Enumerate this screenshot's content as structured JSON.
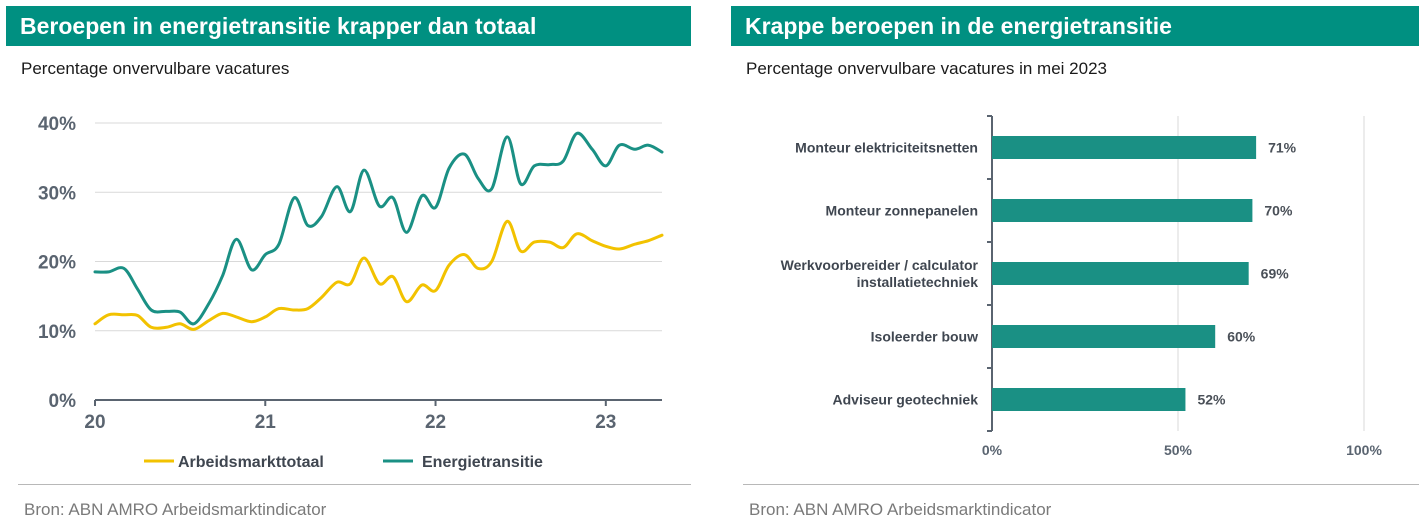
{
  "colors": {
    "header": "#009081",
    "series_total": "#f2c200",
    "series_energy": "#1a9084",
    "grid": "#d9d9d9",
    "axis": "#5a6470"
  },
  "left": {
    "title": "Beroepen in energietransitie krapper dan totaal",
    "subtitle": "Percentage onvervulbare vacatures",
    "source": "Bron: ABN AMRO Arbeidsmarktindicator"
  },
  "right": {
    "title": "Krappe beroepen in de energietransitie",
    "subtitle": "Percentage onvervulbare vacatures in mei 2023",
    "source": "Bron: ABN AMRO Arbeidsmarktindicator"
  },
  "chart_data": [
    {
      "type": "line",
      "title": "Beroepen in energietransitie krapper dan totaal",
      "subtitle": "Percentage onvervulbare vacatures",
      "xlim": [
        20,
        23.33
      ],
      "ylim": [
        0,
        40
      ],
      "x_ticks": [
        20,
        21,
        22,
        23
      ],
      "x_tick_labels": [
        "20",
        "21",
        "22",
        "23"
      ],
      "y_ticks": [
        0,
        10,
        20,
        30,
        40
      ],
      "y_tick_labels": [
        "0%",
        "10%",
        "20%",
        "30%",
        "40%"
      ],
      "grid": true,
      "legend": "bottom",
      "x": [
        20.0,
        20.08,
        20.17,
        20.25,
        20.33,
        20.42,
        20.5,
        20.58,
        20.67,
        20.75,
        20.83,
        20.92,
        21.0,
        21.08,
        21.17,
        21.25,
        21.33,
        21.42,
        21.5,
        21.58,
        21.67,
        21.75,
        21.83,
        21.92,
        22.0,
        22.08,
        22.17,
        22.25,
        22.33,
        22.42,
        22.5,
        22.58,
        22.67,
        22.75,
        22.83,
        22.92,
        23.0,
        23.08,
        23.17,
        23.25,
        23.33
      ],
      "series": [
        {
          "name": "Arbeidsmarkttotaal",
          "color": "#f2c200",
          "values": [
            11,
            12.3,
            12.3,
            12.2,
            10.5,
            10.5,
            11.0,
            10.2,
            11.5,
            12.5,
            12.0,
            11.3,
            12.0,
            13.2,
            13.0,
            13.2,
            14.8,
            17.0,
            16.8,
            20.5,
            16.8,
            17.8,
            14.2,
            16.6,
            15.8,
            19.5,
            21.0,
            19.0,
            20.0,
            25.8,
            21.5,
            22.8,
            22.8,
            22.0,
            24.0,
            23.0,
            22.2,
            21.8,
            22.5,
            23.0,
            23.8
          ]
        },
        {
          "name": "Energietransitie",
          "color": "#1a9084",
          "values": [
            18.5,
            18.5,
            19.0,
            16.0,
            13.0,
            12.8,
            12.7,
            11.0,
            14.0,
            18.0,
            23.2,
            18.8,
            21.0,
            22.5,
            29.2,
            25.2,
            26.5,
            30.8,
            27.2,
            33.2,
            28.0,
            29.2,
            24.2,
            29.5,
            27.8,
            33.5,
            35.5,
            32.0,
            30.5,
            38.0,
            31.2,
            33.8,
            34.0,
            34.5,
            38.5,
            36.2,
            33.8,
            36.8,
            36.2,
            36.8,
            35.8
          ]
        }
      ]
    },
    {
      "type": "bar",
      "orientation": "horizontal",
      "title": "Krappe beroepen in de energietransitie",
      "subtitle": "Percentage onvervulbare vacatures in mei 2023",
      "categories": [
        [
          "Monteur elektriciteitsnetten"
        ],
        [
          "Monteur zonnepanelen"
        ],
        [
          "Werkvoorbereider / calculator",
          "installatietechniek"
        ],
        [
          "Isoleerder bouw"
        ],
        [
          "Adviseur geotechniek"
        ]
      ],
      "values": [
        71,
        70,
        69,
        60,
        52
      ],
      "data_labels": [
        "71%",
        "70%",
        "69%",
        "60%",
        "52%"
      ],
      "xlim": [
        0,
        100
      ],
      "x_ticks": [
        0,
        50,
        100
      ],
      "x_tick_labels": [
        "0%",
        "50%",
        "100%"
      ],
      "grid": true,
      "color": "#1a9084"
    }
  ]
}
